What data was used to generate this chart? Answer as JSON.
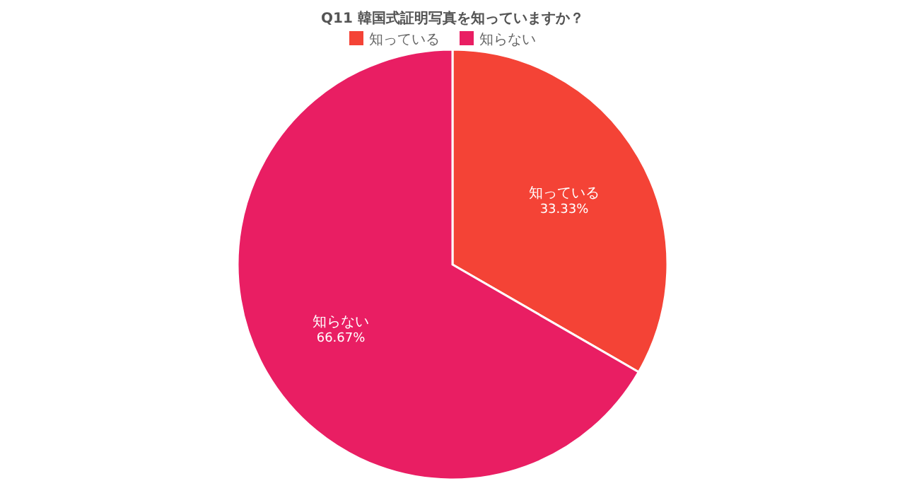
{
  "chart_data": {
    "type": "pie",
    "title": "Q11 韓国式証明写真を知っていますか？",
    "categories": [
      "知っている",
      "知らない"
    ],
    "values": [
      33.33,
      66.67
    ],
    "colors": [
      "#f44336",
      "#e91e63"
    ],
    "value_labels": [
      "33.33%",
      "66.67%"
    ],
    "legend": "top"
  }
}
